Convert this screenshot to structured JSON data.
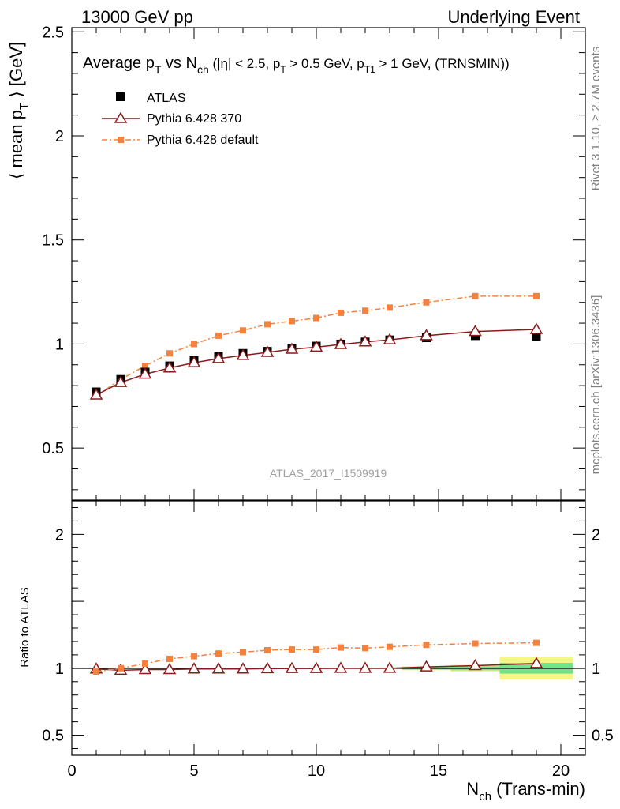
{
  "header": {
    "left": "13000 GeV pp",
    "right": "Underlying Event"
  },
  "side_labels": {
    "rivet": "Rivet 3.1.10, ≥ 2.7M events",
    "mcplots": "mcplots.cern.ch [arXiv:1306.3436]"
  },
  "watermark": "ATLAS_2017_I1509919",
  "chart_data": [
    {
      "type": "line",
      "panel": "main",
      "title": "Average p_T vs N_ch (|η| < 2.5, p_T > 0.5 GeV, p_T1 > 1 GeV, (TRNSMIN))",
      "title_parts": {
        "t1": "Average p",
        "t1_sub": "T",
        "t2": " vs N",
        "t2_sub": "ch",
        "t3": " (|η| < 2.5, p",
        "t3_sub": "T",
        "t4": " > 0.5 GeV, p",
        "t4_sub": "T1",
        "t5": " > 1 GeV, (TRNSMIN))"
      },
      "ylabel": "⟨ mean p_T ⟩ [GeV]",
      "ylabel_parts": {
        "pre": "⟨ mean p",
        "sub": "T",
        "post": " ⟩ [GeV]"
      },
      "xlim": [
        0,
        21
      ],
      "ylim": [
        0.25,
        2.52
      ],
      "yticks": [
        0.5,
        1,
        1.5,
        2,
        2.5
      ],
      "ytick_labels": [
        "0.5",
        "1",
        "1.5",
        "2",
        "2.5"
      ],
      "legend_position": "top-left",
      "series": [
        {
          "name": "ATLAS",
          "color": "#000000",
          "marker": "filled-square",
          "x": [
            1,
            2,
            3,
            4,
            5,
            6,
            7,
            8,
            9,
            10,
            11,
            12,
            13,
            14.5,
            16.5,
            19
          ],
          "y": [
            0.77,
            0.83,
            0.865,
            0.895,
            0.92,
            0.94,
            0.955,
            0.965,
            0.98,
            0.99,
            1.0,
            1.01,
            1.02,
            1.03,
            1.04,
            1.035
          ]
        },
        {
          "name": "Pythia 6.428 370",
          "color": "#8b1a1a",
          "marker": "open-triangle",
          "x": [
            1,
            2,
            3,
            4,
            5,
            6,
            7,
            8,
            9,
            10,
            11,
            12,
            13,
            14.5,
            16.5,
            19
          ],
          "y": [
            0.755,
            0.815,
            0.855,
            0.885,
            0.91,
            0.93,
            0.945,
            0.96,
            0.975,
            0.985,
            0.998,
            1.01,
            1.02,
            1.04,
            1.06,
            1.07
          ]
        },
        {
          "name": "Pythia 6.428 default",
          "color": "#f5823c",
          "marker": "small-square",
          "x": [
            1,
            2,
            3,
            4,
            5,
            6,
            7,
            8,
            9,
            10,
            11,
            12,
            13,
            14.5,
            16.5,
            19
          ],
          "y": [
            0.75,
            0.83,
            0.895,
            0.955,
            1.0,
            1.04,
            1.065,
            1.095,
            1.11,
            1.125,
            1.15,
            1.16,
            1.175,
            1.2,
            1.23,
            1.23
          ]
        }
      ]
    },
    {
      "type": "line",
      "panel": "ratio",
      "ylabel": "Ratio to ATLAS",
      "xlabel": "N_ch (Trans-min)",
      "xlabel_parts": {
        "pre": "N",
        "sub": "ch",
        "post": " (Trans-min)"
      },
      "xlim": [
        0,
        21
      ],
      "ylim": [
        0.35,
        2.25
      ],
      "xticks": [
        0,
        5,
        10,
        15,
        20
      ],
      "xtick_labels": [
        "0",
        "5",
        "10",
        "15",
        "20"
      ],
      "yticks": [
        0.5,
        1,
        2
      ],
      "ytick_labels": [
        "0.5",
        "1",
        "2"
      ],
      "reference_line": 1.0,
      "uncertainty_bands": [
        {
          "x": [
            13.5,
            15.5
          ],
          "inner": 0.01,
          "outer": 0.015
        },
        {
          "x": [
            15.5,
            17.5
          ],
          "inner": 0.015,
          "outer": 0.025
        },
        {
          "x": [
            17.5,
            20.5
          ],
          "inner": 0.04,
          "outer": 0.085
        }
      ],
      "series": [
        {
          "name": "Pythia 6.428 370",
          "color": "#8b1a1a",
          "marker": "open-triangle",
          "x": [
            1,
            2,
            3,
            4,
            5,
            6,
            7,
            8,
            9,
            10,
            11,
            12,
            13,
            14.5,
            16.5,
            19
          ],
          "y": [
            0.995,
            0.985,
            0.99,
            0.99,
            0.995,
            0.995,
            0.995,
            0.997,
            0.998,
            0.998,
            1.0,
            1.0,
            1.0,
            1.01,
            1.02,
            1.035
          ]
        },
        {
          "name": "Pythia 6.428 default",
          "color": "#f5823c",
          "marker": "small-square",
          "x": [
            1,
            2,
            3,
            4,
            5,
            6,
            7,
            8,
            9,
            10,
            11,
            12,
            13,
            14.5,
            16.5,
            19
          ],
          "y": [
            0.975,
            1.0,
            1.035,
            1.07,
            1.09,
            1.11,
            1.12,
            1.135,
            1.14,
            1.14,
            1.155,
            1.15,
            1.16,
            1.175,
            1.185,
            1.19
          ]
        }
      ]
    }
  ]
}
